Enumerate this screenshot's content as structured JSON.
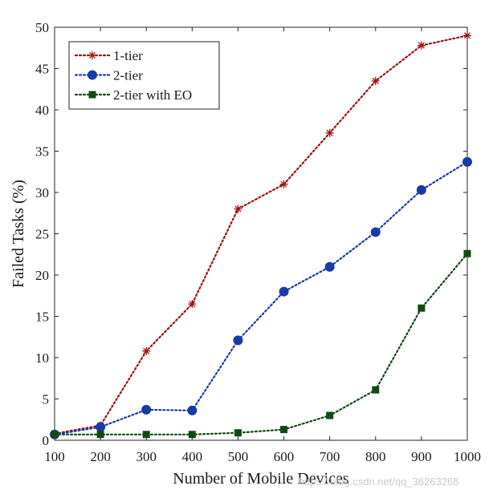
{
  "chart_data": {
    "type": "line",
    "title": "",
    "xlabel": "Number of Mobile Devices",
    "ylabel": "Failed Tasks (%)",
    "x": [
      100,
      200,
      300,
      400,
      500,
      600,
      700,
      800,
      900,
      1000
    ],
    "xlim": [
      100,
      1000
    ],
    "ylim": [
      0,
      50
    ],
    "xticks": [
      100,
      200,
      300,
      400,
      500,
      600,
      700,
      800,
      900,
      1000
    ],
    "yticks": [
      0,
      5,
      10,
      15,
      20,
      25,
      30,
      35,
      40,
      45,
      50
    ],
    "grid": false,
    "legend_position": "top-left",
    "series": [
      {
        "name": "1-tier",
        "marker": "asterisk",
        "line": "dotted",
        "color": "#a01010",
        "values": [
          0.8,
          1.8,
          10.8,
          16.5,
          28.0,
          31.0,
          37.2,
          43.5,
          47.8,
          49.0
        ]
      },
      {
        "name": "2-tier",
        "marker": "circle",
        "line": "dotted",
        "color": "#1a3aa8",
        "values": [
          0.7,
          1.6,
          3.7,
          3.6,
          12.1,
          18.0,
          21.0,
          25.2,
          30.3,
          33.7
        ]
      },
      {
        "name": "2-tier with EO",
        "marker": "square",
        "line": "dotted",
        "color": "#0f4a12",
        "values": [
          0.7,
          0.7,
          0.7,
          0.7,
          0.9,
          1.3,
          3.0,
          6.1,
          16.0,
          22.6
        ]
      }
    ]
  },
  "watermark": "https://blog.csdn.net/qq_36263268"
}
